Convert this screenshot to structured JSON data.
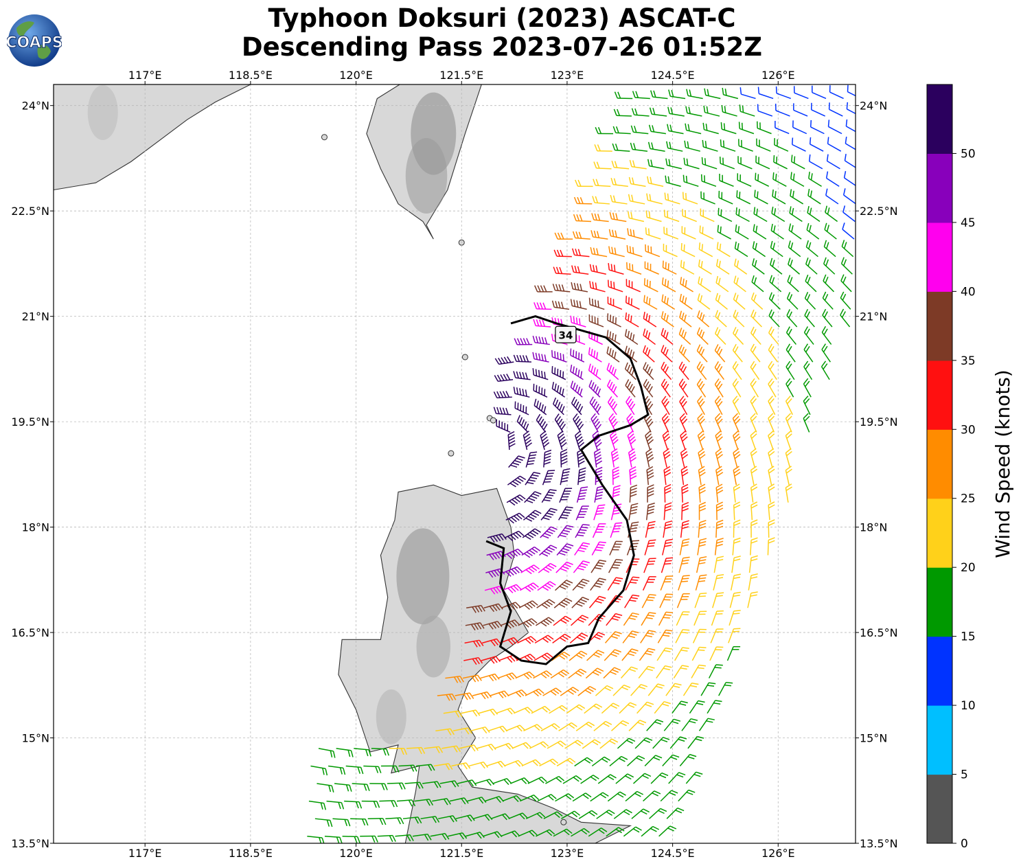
{
  "title": {
    "line1": "Typhoon Doksuri (2023) ASCAT-C",
    "line2": "Descending Pass 2023-07-26 01:52Z"
  },
  "logo": {
    "text": "COAPS"
  },
  "map": {
    "lon_range": [
      115.7,
      127.1
    ],
    "lat_range": [
      13.5,
      24.3
    ],
    "lon_ticks": [
      {
        "value": 117.0,
        "label": "117°E"
      },
      {
        "value": 118.5,
        "label": "118.5°E"
      },
      {
        "value": 120.0,
        "label": "120°E"
      },
      {
        "value": 121.5,
        "label": "121.5°E"
      },
      {
        "value": 123.0,
        "label": "123°E"
      },
      {
        "value": 124.5,
        "label": "124.5°E"
      },
      {
        "value": 126.0,
        "label": "126°E"
      }
    ],
    "lat_ticks": [
      {
        "value": 24.0,
        "label": "24°N"
      },
      {
        "value": 22.5,
        "label": "22.5°N"
      },
      {
        "value": 21.0,
        "label": "21°N"
      },
      {
        "value": 19.5,
        "label": "19.5°N"
      },
      {
        "value": 18.0,
        "label": "18°N"
      },
      {
        "value": 16.5,
        "label": "16.5°N"
      },
      {
        "value": 15.0,
        "label": "15°N"
      },
      {
        "value": 13.5,
        "label": "13.5°N"
      }
    ],
    "grid": true,
    "contour_label": "34",
    "land_color": "#d8d8d8",
    "coast_color": "#333333"
  },
  "colorbar": {
    "label": "Wind Speed (knots)",
    "ticks": [
      {
        "value": 0,
        "label": "0"
      },
      {
        "value": 5,
        "label": "5"
      },
      {
        "value": 10,
        "label": "10"
      },
      {
        "value": 15,
        "label": "15"
      },
      {
        "value": 20,
        "label": "20"
      },
      {
        "value": 25,
        "label": "25"
      },
      {
        "value": 30,
        "label": "30"
      },
      {
        "value": 35,
        "label": "35"
      },
      {
        "value": 40,
        "label": "40"
      },
      {
        "value": 45,
        "label": "45"
      },
      {
        "value": 50,
        "label": "50"
      }
    ],
    "colors": [
      "#555555",
      "#00bfff",
      "#0033ff",
      "#009900",
      "#ffd11a",
      "#ff8c00",
      "#ff1010",
      "#7d3a26",
      "#ff00ee",
      "#8800bb",
      "#2b005e"
    ],
    "max": 55
  }
}
